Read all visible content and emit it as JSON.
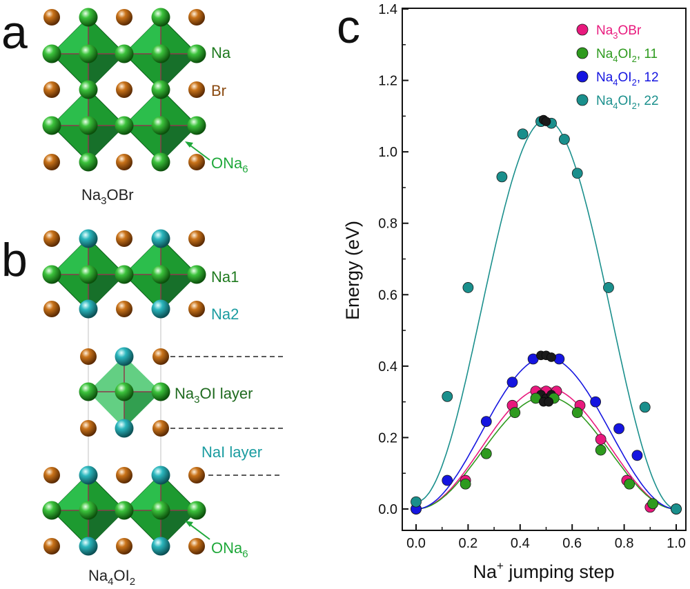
{
  "colors": {
    "na": "#1f8f1f",
    "br": "#b8600e",
    "na2": "#1a9ca0",
    "octa_a": "#1f9a2f",
    "octa_b": "#2fbf5a",
    "ona6_label": "#1fa83a",
    "na3obr": "#e8197d",
    "na4oi2_11": "#2e9a1e",
    "na4oi2_12": "#1515e0",
    "na4oi2_22": "#1a8f8c",
    "dark_point": "#111111"
  },
  "panel_a": {
    "letter": "a",
    "label_na": "Na",
    "label_br": "Br",
    "label_ona6": "ONa",
    "label_ona6_sub": "6",
    "caption_pre": "Na",
    "caption_sub": "3",
    "caption_post": "OBr"
  },
  "panel_b": {
    "letter": "b",
    "label_na1": "Na1",
    "label_na2": "Na2",
    "label_na3oi": "Na",
    "label_na3oi_sub": "3",
    "label_na3oi_post": "OI layer",
    "label_nai": "NaI layer",
    "label_ona6": "ONa",
    "label_ona6_sub": "6",
    "caption_pre": "Na",
    "caption_sub1": "4",
    "caption_mid": "OI",
    "caption_sub2": "2"
  },
  "panel_c": {
    "letter": "c"
  },
  "chart_data": {
    "type": "scatter",
    "xlabel": "Na+ jumping step",
    "xlabel_pre": "Na",
    "xlabel_sup": "+",
    "xlabel_post": " jumping step",
    "ylabel": "Energy (eV)",
    "xlim": [
      0.0,
      1.0
    ],
    "ylim": [
      0.0,
      1.4
    ],
    "xticks": [
      "0.0",
      "0.2",
      "0.4",
      "0.6",
      "0.8",
      "1.0"
    ],
    "yticks": [
      "0.0",
      "0.2",
      "0.4",
      "0.6",
      "0.8",
      "1.0",
      "1.2",
      "1.4"
    ],
    "legend_position": "top-right",
    "series": [
      {
        "name": "Na3OBr",
        "name_pre": "Na",
        "name_sub": "3",
        "name_post": "OBr",
        "name_sub2": "",
        "name_tail": "",
        "color": "#e8197d",
        "x": [
          0.0,
          0.19,
          0.37,
          0.46,
          0.5,
          0.54,
          0.63,
          0.71,
          0.81,
          0.9,
          1.0
        ],
        "y": [
          0.0,
          0.08,
          0.29,
          0.33,
          0.33,
          0.33,
          0.29,
          0.195,
          0.08,
          0.005,
          0.0
        ],
        "peak": 0.34,
        "dark_points": [
          [
            0.48,
            0.32
          ],
          [
            0.5,
            0.31
          ],
          [
            0.52,
            0.32
          ]
        ]
      },
      {
        "name": "Na4OI2, 11",
        "name_pre": "Na",
        "name_sub": "4",
        "name_post": "OI",
        "name_sub2": "2",
        "name_tail": ", 11",
        "color": "#2e9a1e",
        "x": [
          0.0,
          0.19,
          0.27,
          0.38,
          0.46,
          0.53,
          0.62,
          0.71,
          0.82,
          0.91,
          1.0
        ],
        "y": [
          0.0,
          0.07,
          0.155,
          0.27,
          0.31,
          0.31,
          0.27,
          0.165,
          0.07,
          0.015,
          0.0
        ],
        "peak": 0.315,
        "dark_points": [
          [
            0.49,
            0.3
          ],
          [
            0.51,
            0.3
          ]
        ]
      },
      {
        "name": "Na4OI2, 12",
        "name_pre": "Na",
        "name_sub": "4",
        "name_post": "OI",
        "name_sub2": "2",
        "name_tail": ", 12",
        "color": "#1515e0",
        "x": [
          0.0,
          0.12,
          0.27,
          0.37,
          0.45,
          0.55,
          0.69,
          0.78,
          0.85,
          1.0
        ],
        "y": [
          0.0,
          0.08,
          0.245,
          0.355,
          0.42,
          0.42,
          0.3,
          0.225,
          0.15,
          0.0
        ],
        "peak": 0.425,
        "dark_points": [
          [
            0.48,
            0.43
          ],
          [
            0.5,
            0.43
          ],
          [
            0.52,
            0.425
          ]
        ]
      },
      {
        "name": "Na4OI2, 22",
        "name_pre": "Na",
        "name_sub": "4",
        "name_post": "OI",
        "name_sub2": "2",
        "name_tail": ", 22",
        "color": "#1a8f8c",
        "x": [
          0.0,
          0.12,
          0.2,
          0.33,
          0.41,
          0.48,
          0.52,
          0.57,
          0.62,
          0.74,
          0.88,
          1.0
        ],
        "y": [
          0.02,
          0.315,
          0.62,
          0.93,
          1.05,
          1.085,
          1.08,
          1.035,
          0.94,
          0.62,
          0.285,
          0.0
        ],
        "peak": 1.09,
        "dark_points": [
          [
            0.49,
            1.09
          ],
          [
            0.5,
            1.085
          ]
        ]
      }
    ]
  }
}
